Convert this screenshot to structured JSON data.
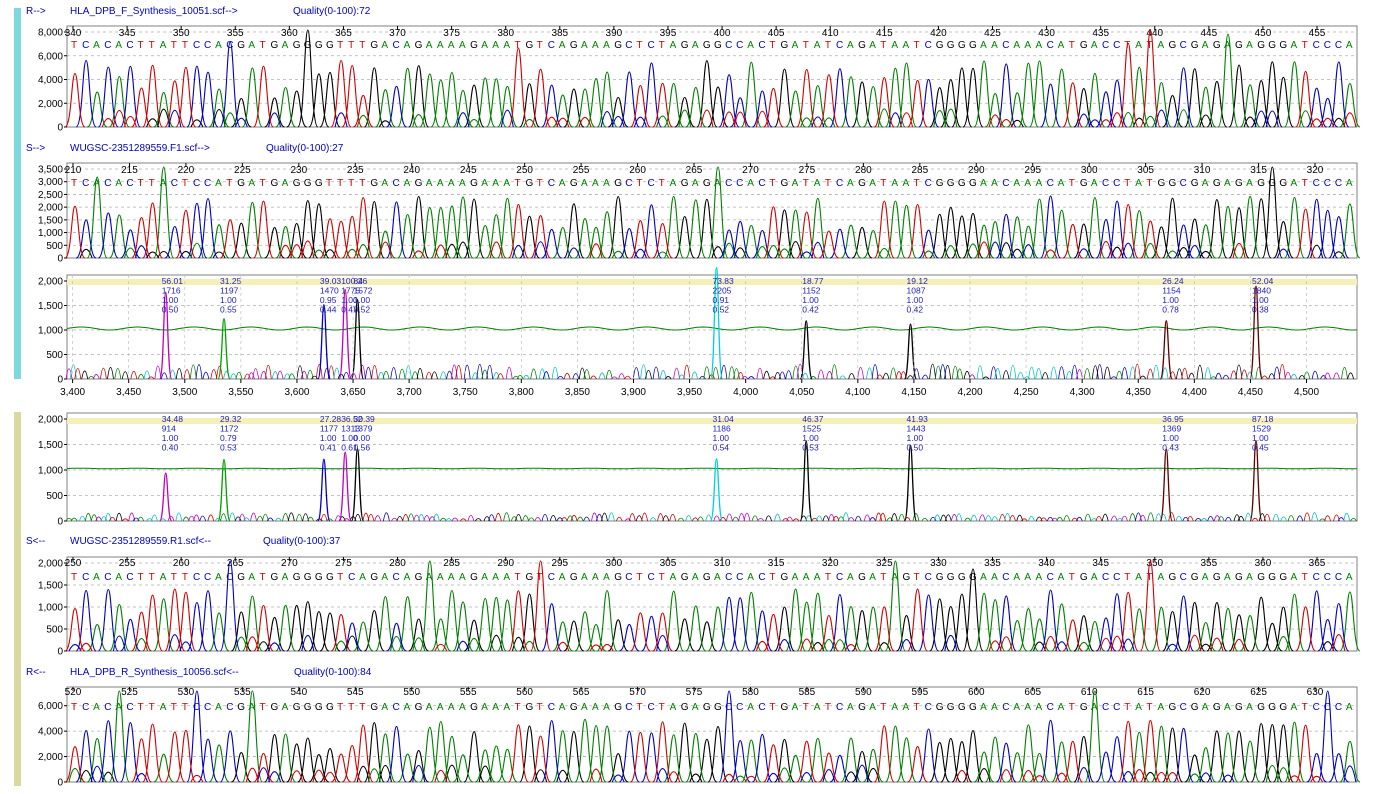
{
  "colors": {
    "sidebar_top": "#7fd8dd",
    "sidebar_bottom": "#d8d8a0",
    "A": "#008000",
    "C": "#0000c0",
    "G": "#000000",
    "T": "#d00000",
    "header_text": "#0000c0",
    "mutation_band": "#f5f0b8",
    "baseline": "#008000"
  },
  "icons": {
    "file_direction": "arrow-text"
  },
  "chart_data": [
    {
      "type": "line",
      "direction": "R-->",
      "file": "HLA_DPB_F_Synthesis_10051.scf-->",
      "quality_label": "Quality(0-100):72",
      "y_ticks": [
        "8,000",
        "6,000",
        "4,000",
        "2,000",
        "0"
      ],
      "ylim": [
        0,
        8000
      ],
      "pos_ticks": [
        "340",
        "345",
        "350",
        "355",
        "360",
        "365",
        "370",
        "375",
        "380",
        "385",
        "390",
        "395",
        "400",
        "405",
        "410",
        "415",
        "420",
        "425",
        "430",
        "435",
        "440",
        "445",
        "450",
        "455"
      ],
      "sequence": "TCACACTTATTCCACGATGAGGGGTTTGACAGAAAAGAAATGTCAGAAAGCTCTAGAGGCCACTGATATCAGATAATCGGGGAACAAACATGACCTATAGCGAGAGAGGGATCCCA"
    },
    {
      "type": "line",
      "direction": "S-->",
      "file": "WUGSC-2351289559.F1.scf-->",
      "quality_label": "Quality(0-100):27",
      "y_ticks": [
        "3,500",
        "3,000",
        "2,500",
        "2,000",
        "1,500",
        "1,000",
        "500",
        "0"
      ],
      "ylim": [
        0,
        3500
      ],
      "pos_ticks": [
        "210",
        "215",
        "220",
        "225",
        "230",
        "235",
        "240",
        "245",
        "250",
        "255",
        "260",
        "265",
        "270",
        "275",
        "280",
        "285",
        "290",
        "295",
        "300",
        "305",
        "310",
        "315",
        "320"
      ],
      "sequence": "TCACACTTACTCCATGATGAGGGTTTTGACAGAAAAGAAATGTCAGAAAGCTCTAGAGACCACTGATATCAGATAATCGGGGAACAAACATGACCTATGGCGAGAGAGGGATCCCA"
    },
    {
      "type": "line",
      "direction": "difference-forward",
      "y_ticks": [
        "2,000",
        "1,500",
        "1,000",
        "500",
        "0"
      ],
      "ylim": [
        0,
        2000
      ],
      "x_ticks": [
        "3,400",
        "3,450",
        "3,500",
        "3,550",
        "3,600",
        "3,650",
        "3,700",
        "3,750",
        "3,800",
        "3,850",
        "3,900",
        "3,950",
        "4,000",
        "4,050",
        "4,100",
        "4,150",
        "4,200",
        "4,250",
        "4,300",
        "4,350",
        "4,400",
        "4,450",
        "4,500"
      ],
      "xlim": [
        3395,
        4545
      ],
      "peaks": [
        {
          "x": 3483,
          "base": "T",
          "height": 1716,
          "labels": [
            "56.01",
            "1716",
            "1.00",
            "0.50"
          ]
        },
        {
          "x": 3535,
          "base": "A",
          "height": 1197,
          "labels": [
            "31.25",
            "1197",
            "1.00",
            "0.55"
          ]
        },
        {
          "x": 3624,
          "base": "C",
          "height": 1470,
          "labels": [
            "39.03",
            "1470",
            "0.95",
            "0.44"
          ]
        },
        {
          "x": 3643,
          "base": "T",
          "height": 1775,
          "labels": [
            "100.26",
            "1775",
            "1.00",
            "0.47"
          ]
        },
        {
          "x": 3654,
          "base": "G",
          "height": 1572,
          "labels": [
            "84",
            "1572",
            "1.00",
            "0.52"
          ]
        },
        {
          "x": 3974,
          "base": "A",
          "height": 2205,
          "labels": [
            "73.83",
            "2205",
            "0.91",
            "0.52"
          ]
        },
        {
          "x": 4054,
          "base": "G",
          "height": 1152,
          "labels": [
            "18.77",
            "1152",
            "1.00",
            "0.42"
          ]
        },
        {
          "x": 4147,
          "base": "G",
          "height": 1087,
          "labels": [
            "19.12",
            "1087",
            "1.00",
            "0.42"
          ]
        },
        {
          "x": 4375,
          "base": "G",
          "height": 1154,
          "labels": [
            "26.24",
            "1154",
            "1.00",
            "0.78"
          ]
        },
        {
          "x": 4455,
          "base": "G",
          "height": 1840,
          "labels": [
            "52.04",
            "1840",
            "1.00",
            "0.38"
          ]
        }
      ]
    },
    {
      "type": "line",
      "direction": "difference-reverse",
      "y_ticks": [
        "2,000",
        "1,500",
        "1,000",
        "500",
        "0"
      ],
      "ylim": [
        0,
        2000
      ],
      "xlim": [
        3395,
        4545
      ],
      "peaks": [
        {
          "x": 3483,
          "base": "T",
          "height": 914,
          "labels": [
            "34.48",
            "914",
            "1.00",
            "0.40"
          ]
        },
        {
          "x": 3535,
          "base": "A",
          "height": 1172,
          "labels": [
            "29.32",
            "1172",
            "0.79",
            "0.53"
          ]
        },
        {
          "x": 3624,
          "base": "C",
          "height": 1177,
          "labels": [
            "27.28",
            "1177",
            "1.00",
            "0.41"
          ]
        },
        {
          "x": 3643,
          "base": "T",
          "height": 1313,
          "labels": [
            "36.52",
            "1313",
            "1.00",
            "0.61"
          ]
        },
        {
          "x": 3654,
          "base": "G",
          "height": 1379,
          "labels": [
            "30.39",
            "1379",
            "0.00",
            "0.56"
          ]
        },
        {
          "x": 3974,
          "base": "A",
          "height": 1186,
          "labels": [
            "31.04",
            "1186",
            "1.00",
            "0.54"
          ]
        },
        {
          "x": 4054,
          "base": "G",
          "height": 1525,
          "labels": [
            "46.37",
            "1525",
            "1.00",
            "0.53"
          ]
        },
        {
          "x": 4147,
          "base": "G",
          "height": 1443,
          "labels": [
            "41.93",
            "1443",
            "1.00",
            "0.50"
          ]
        },
        {
          "x": 4375,
          "base": "G",
          "height": 1369,
          "labels": [
            "36.95",
            "1369",
            "1.00",
            "0.43"
          ]
        },
        {
          "x": 4455,
          "base": "G",
          "height": 1529,
          "labels": [
            "87.18",
            "1529",
            "1.00",
            "0.45"
          ]
        }
      ]
    },
    {
      "type": "line",
      "direction": "S<--",
      "file": "WUGSC-2351289559.R1.scf<--",
      "quality_label": "Quality(0-100):37",
      "y_ticks": [
        "2,000",
        "1,500",
        "1,000",
        "500",
        "0"
      ],
      "ylim": [
        0,
        2000
      ],
      "pos_ticks": [
        "250",
        "255",
        "260",
        "265",
        "270",
        "275",
        "280",
        "285",
        "290",
        "295",
        "300",
        "305",
        "310",
        "315",
        "320",
        "325",
        "330",
        "335",
        "340",
        "345",
        "350",
        "355",
        "360",
        "365"
      ],
      "sequence": "TCACACTTATTCCACGATGAGGGGTCAGACAGAAAAGAAATGTCAGAAAGCTCTAGAGACCACTGAAATCAGATAGTCGGGGAACAAACATGACCTATAGCGAGAGAGGGATCCCA"
    },
    {
      "type": "line",
      "direction": "R<--",
      "file": "HLA_DPB_R_Synthesis_10056.scf<--",
      "quality_label": "Quality(0-100):84",
      "y_ticks": [
        "6,000",
        "4,000",
        "2,000",
        "0"
      ],
      "ylim": [
        0,
        7000
      ],
      "pos_ticks": [
        "520",
        "525",
        "530",
        "535",
        "540",
        "545",
        "550",
        "555",
        "560",
        "565",
        "570",
        "575",
        "580",
        "585",
        "590",
        "595",
        "600",
        "605",
        "610",
        "615",
        "620",
        "625",
        "630"
      ],
      "sequence": "TCACACTTATTCCACGATGAGGGGTTTGACAGAAAAGAAATGTCAGAAAGCTCTAGAGGCCACTGATATCAGATAATCGGGGAACAAACATGACCTATAGCGAGAGAGGGATCCCA"
    }
  ]
}
